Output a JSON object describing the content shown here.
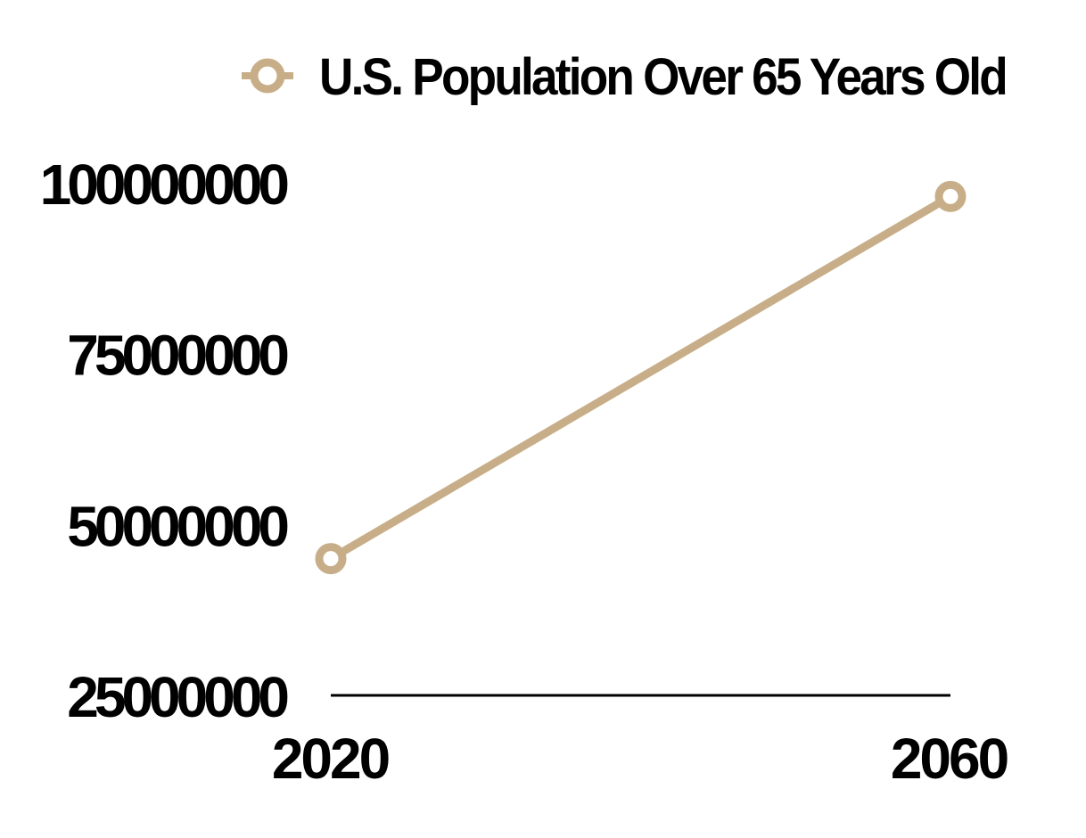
{
  "chart_data": {
    "type": "line",
    "x": [
      "2020",
      "2060"
    ],
    "series": [
      {
        "name": "U.S. Population Over 65 Years Old",
        "values": [
          45000000,
          98000000
        ],
        "color": "#c8ae88"
      }
    ],
    "y_ticks": [
      "25000000",
      "50000000",
      "75000000",
      "100000000"
    ],
    "ylim": [
      25000000,
      100000000
    ],
    "grid": false,
    "legend": "top",
    "axis_color": "#000000",
    "marker": "hollow-circle"
  }
}
